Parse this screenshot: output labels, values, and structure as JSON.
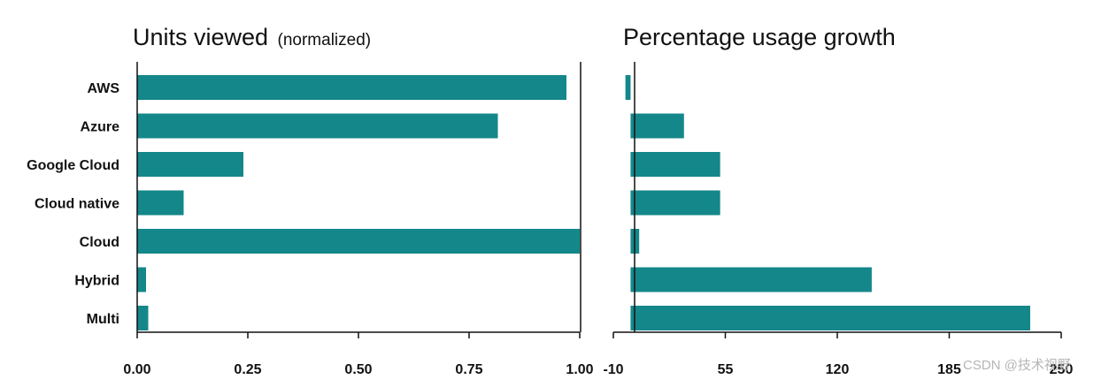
{
  "colors": {
    "bar": "#14878a",
    "axis": "#111111",
    "text": "#111111",
    "watermark": "#b5b5b5"
  },
  "watermark": "CSDN @技术视野",
  "chart_data": [
    {
      "type": "bar",
      "orientation": "horizontal",
      "title": "Units viewed",
      "subtitle": "(normalized)",
      "categories": [
        "AWS",
        "Azure",
        "Google Cloud",
        "Cloud native",
        "Cloud",
        "Hybrid",
        "Multi"
      ],
      "values": [
        0.97,
        0.815,
        0.24,
        0.105,
        1.0,
        0.02,
        0.025
      ],
      "xlim": [
        0,
        1.0
      ],
      "xticks": [
        0,
        0.25,
        0.5,
        0.75,
        1.0
      ],
      "xtick_labels": [
        "0.00",
        "0.25",
        "0.50",
        "0.75",
        "1.00"
      ],
      "grid": false
    },
    {
      "type": "bar",
      "orientation": "horizontal",
      "title": "Percentage usage growth",
      "categories": [
        "AWS",
        "Azure",
        "Google Cloud",
        "Cloud native",
        "Cloud",
        "Hybrid",
        "Multi"
      ],
      "values": [
        -3,
        31,
        52,
        52,
        5,
        140,
        232
      ],
      "xlim": [
        -10,
        250
      ],
      "xticks": [
        -10,
        55,
        120,
        185,
        250
      ],
      "xtick_labels": [
        "-10",
        "55",
        "120",
        "185",
        "250"
      ],
      "grid": false
    }
  ]
}
